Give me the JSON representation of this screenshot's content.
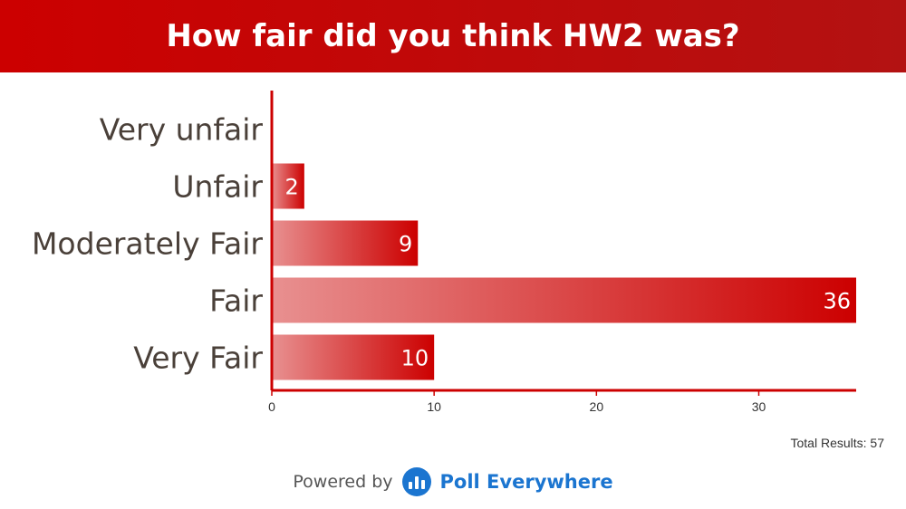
{
  "header": {
    "title": "How fair did you think HW2 was?"
  },
  "chart_data": {
    "type": "bar",
    "orientation": "horizontal",
    "title": "How fair did you think HW2 was?",
    "categories": [
      "Very unfair",
      "Unfair",
      "Moderately Fair",
      "Fair",
      "Very Fair"
    ],
    "values": [
      0,
      2,
      9,
      36,
      10
    ],
    "xticks": [
      0,
      10,
      20,
      30
    ],
    "xlim": [
      0,
      36
    ],
    "grid": false,
    "colors": {
      "bar_start": "#e89090",
      "bar_end": "#cc0000",
      "axis": "#cc0000"
    }
  },
  "summary": {
    "total_label": "Total Results: 57"
  },
  "footer": {
    "powered_by": "Powered by",
    "brand": "Poll Everywhere",
    "brand_icon": "poll-everywhere-logo-icon"
  }
}
